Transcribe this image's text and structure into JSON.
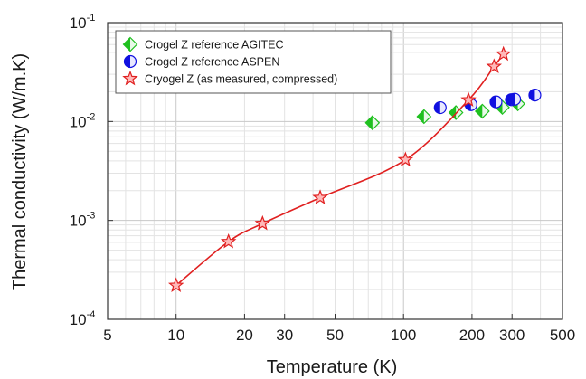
{
  "chart_data": {
    "type": "scatter",
    "xlabel": "Temperature (K)",
    "ylabel": "Thermal conductivity (W/m.K)",
    "xscale": "log",
    "yscale": "log",
    "xlim": [
      5,
      500
    ],
    "ylim": [
      0.0001,
      0.1
    ],
    "x_ticks": [
      5,
      10,
      20,
      30,
      50,
      100,
      200,
      300,
      500
    ],
    "x_tick_labels": [
      "5",
      "10",
      "20",
      "30",
      "50",
      "100",
      "200",
      "300",
      "500"
    ],
    "y_ticks": [
      {
        "value": 0.1,
        "base": "10",
        "exp": "-1"
      },
      {
        "value": 0.01,
        "base": "10",
        "exp": "-2"
      },
      {
        "value": 0.001,
        "base": "10",
        "exp": "-3"
      },
      {
        "value": 0.0001,
        "base": "10",
        "exp": "-4"
      }
    ],
    "grid": true,
    "legend_position": "top-left",
    "series": [
      {
        "name": "Crogel Z reference AGITEC",
        "marker": "half-filled-diamond",
        "color": "#1fc01f",
        "points": [
          [
            73,
            0.0097
          ],
          [
            123,
            0.0112
          ],
          [
            170,
            0.0123
          ],
          [
            222,
            0.0127
          ],
          [
            272,
            0.0139
          ],
          [
            318,
            0.0151
          ]
        ]
      },
      {
        "name": "Crogel Z reference ASPEN",
        "marker": "half-filled-circle",
        "color": "#1010e0",
        "points": [
          [
            145,
            0.0138
          ],
          [
            198,
            0.0148
          ],
          [
            255,
            0.0158
          ],
          [
            298,
            0.0166
          ],
          [
            308,
            0.0168
          ],
          [
            378,
            0.0185
          ]
        ]
      },
      {
        "name": "Cryogel Z (as measured, compressed)",
        "marker": "star",
        "color": "#e02020",
        "line": true,
        "points": [
          [
            10,
            0.00022
          ],
          [
            17,
            0.00061
          ],
          [
            24,
            0.00093
          ],
          [
            43,
            0.0017
          ],
          [
            102,
            0.0041
          ],
          [
            193,
            0.0165
          ],
          [
            250,
            0.036
          ],
          [
            275,
            0.048
          ]
        ]
      }
    ]
  }
}
